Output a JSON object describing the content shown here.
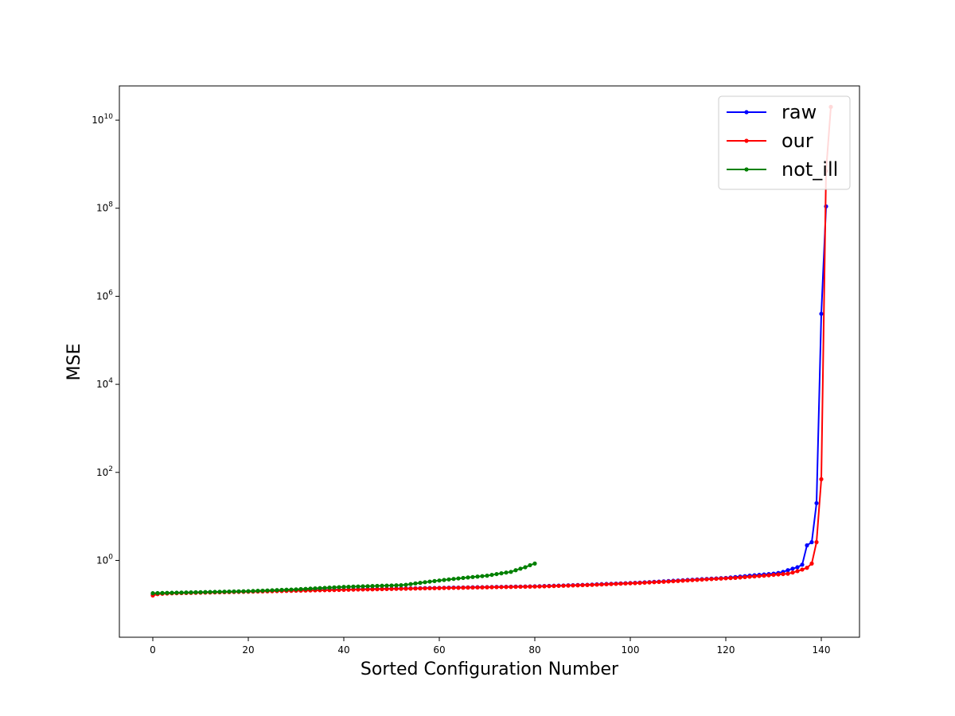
{
  "chart_data": {
    "type": "line",
    "title": "",
    "xlabel": "Sorted Configuration Number",
    "ylabel": "MSE",
    "yscale": "log",
    "xlim": [
      -7,
      148
    ],
    "ylim": [
      0.018,
      60000000000.0
    ],
    "xticks": [
      0,
      20,
      40,
      60,
      80,
      100,
      120,
      140
    ],
    "yticks": [
      {
        "value": 1,
        "base": "10",
        "exp": "0"
      },
      {
        "value": 100,
        "base": "10",
        "exp": "2"
      },
      {
        "value": 10000,
        "base": "10",
        "exp": "4"
      },
      {
        "value": 1000000,
        "base": "10",
        "exp": "6"
      },
      {
        "value": 100000000,
        "base": "10",
        "exp": "8"
      },
      {
        "value": 10000000000,
        "base": "10",
        "exp": "10"
      }
    ],
    "grid": false,
    "legend": "top-right",
    "series": [
      {
        "name": "raw",
        "color": "#0000ff",
        "y": [
          0.17,
          0.175,
          0.178,
          0.18,
          0.182,
          0.183,
          0.184,
          0.185,
          0.186,
          0.187,
          0.188,
          0.189,
          0.19,
          0.191,
          0.192,
          0.193,
          0.194,
          0.195,
          0.196,
          0.197,
          0.198,
          0.199,
          0.2,
          0.201,
          0.202,
          0.203,
          0.204,
          0.205,
          0.206,
          0.207,
          0.208,
          0.209,
          0.21,
          0.211,
          0.212,
          0.213,
          0.214,
          0.215,
          0.216,
          0.217,
          0.218,
          0.219,
          0.22,
          0.221,
          0.222,
          0.223,
          0.224,
          0.225,
          0.226,
          0.227,
          0.228,
          0.229,
          0.23,
          0.231,
          0.232,
          0.233,
          0.234,
          0.235,
          0.236,
          0.237,
          0.238,
          0.239,
          0.24,
          0.241,
          0.242,
          0.243,
          0.244,
          0.245,
          0.246,
          0.247,
          0.248,
          0.249,
          0.25,
          0.251,
          0.252,
          0.253,
          0.254,
          0.255,
          0.256,
          0.257,
          0.258,
          0.26,
          0.262,
          0.264,
          0.266,
          0.268,
          0.27,
          0.272,
          0.274,
          0.276,
          0.278,
          0.28,
          0.283,
          0.286,
          0.289,
          0.292,
          0.295,
          0.298,
          0.301,
          0.304,
          0.307,
          0.31,
          0.314,
          0.318,
          0.322,
          0.326,
          0.33,
          0.335,
          0.34,
          0.345,
          0.35,
          0.355,
          0.36,
          0.365,
          0.37,
          0.375,
          0.38,
          0.385,
          0.39,
          0.395,
          0.4,
          0.41,
          0.42,
          0.43,
          0.44,
          0.45,
          0.46,
          0.47,
          0.48,
          0.49,
          0.5,
          0.52,
          0.55,
          0.6,
          0.65,
          0.7,
          0.8,
          2.2,
          2.6,
          20,
          400000,
          110000000
        ]
      },
      {
        "name": "our",
        "color": "#ff0000",
        "y": [
          0.16,
          0.172,
          0.175,
          0.177,
          0.179,
          0.18,
          0.181,
          0.182,
          0.183,
          0.184,
          0.185,
          0.186,
          0.187,
          0.188,
          0.189,
          0.19,
          0.191,
          0.192,
          0.193,
          0.194,
          0.195,
          0.196,
          0.197,
          0.198,
          0.199,
          0.2,
          0.201,
          0.202,
          0.203,
          0.204,
          0.205,
          0.206,
          0.207,
          0.208,
          0.209,
          0.21,
          0.211,
          0.212,
          0.213,
          0.214,
          0.215,
          0.216,
          0.217,
          0.218,
          0.219,
          0.22,
          0.221,
          0.222,
          0.223,
          0.224,
          0.225,
          0.226,
          0.227,
          0.228,
          0.229,
          0.23,
          0.231,
          0.232,
          0.233,
          0.234,
          0.235,
          0.236,
          0.237,
          0.238,
          0.239,
          0.24,
          0.241,
          0.242,
          0.243,
          0.244,
          0.245,
          0.246,
          0.247,
          0.248,
          0.249,
          0.25,
          0.251,
          0.252,
          0.253,
          0.254,
          0.255,
          0.256,
          0.258,
          0.26,
          0.262,
          0.264,
          0.266,
          0.268,
          0.27,
          0.272,
          0.274,
          0.276,
          0.278,
          0.281,
          0.284,
          0.287,
          0.29,
          0.293,
          0.296,
          0.299,
          0.302,
          0.305,
          0.308,
          0.312,
          0.316,
          0.32,
          0.324,
          0.328,
          0.332,
          0.337,
          0.342,
          0.347,
          0.352,
          0.357,
          0.362,
          0.367,
          0.372,
          0.377,
          0.382,
          0.387,
          0.392,
          0.397,
          0.402,
          0.41,
          0.418,
          0.426,
          0.434,
          0.442,
          0.45,
          0.46,
          0.47,
          0.48,
          0.49,
          0.5,
          0.53,
          0.57,
          0.62,
          0.68,
          0.85,
          2.6,
          70,
          700000000,
          20000000000
        ]
      },
      {
        "name": "not_ill",
        "color": "#008000",
        "y": [
          0.18,
          0.181,
          0.182,
          0.183,
          0.184,
          0.185,
          0.186,
          0.187,
          0.188,
          0.189,
          0.19,
          0.191,
          0.192,
          0.193,
          0.194,
          0.195,
          0.196,
          0.197,
          0.198,
          0.199,
          0.2,
          0.202,
          0.204,
          0.206,
          0.208,
          0.21,
          0.212,
          0.214,
          0.216,
          0.218,
          0.22,
          0.223,
          0.226,
          0.229,
          0.232,
          0.235,
          0.238,
          0.241,
          0.244,
          0.247,
          0.25,
          0.252,
          0.254,
          0.256,
          0.258,
          0.26,
          0.262,
          0.264,
          0.266,
          0.268,
          0.27,
          0.272,
          0.274,
          0.28,
          0.29,
          0.3,
          0.31,
          0.32,
          0.33,
          0.34,
          0.35,
          0.36,
          0.37,
          0.38,
          0.39,
          0.4,
          0.41,
          0.42,
          0.43,
          0.44,
          0.45,
          0.47,
          0.49,
          0.51,
          0.53,
          0.55,
          0.6,
          0.65,
          0.7,
          0.78,
          0.85
        ]
      }
    ]
  }
}
